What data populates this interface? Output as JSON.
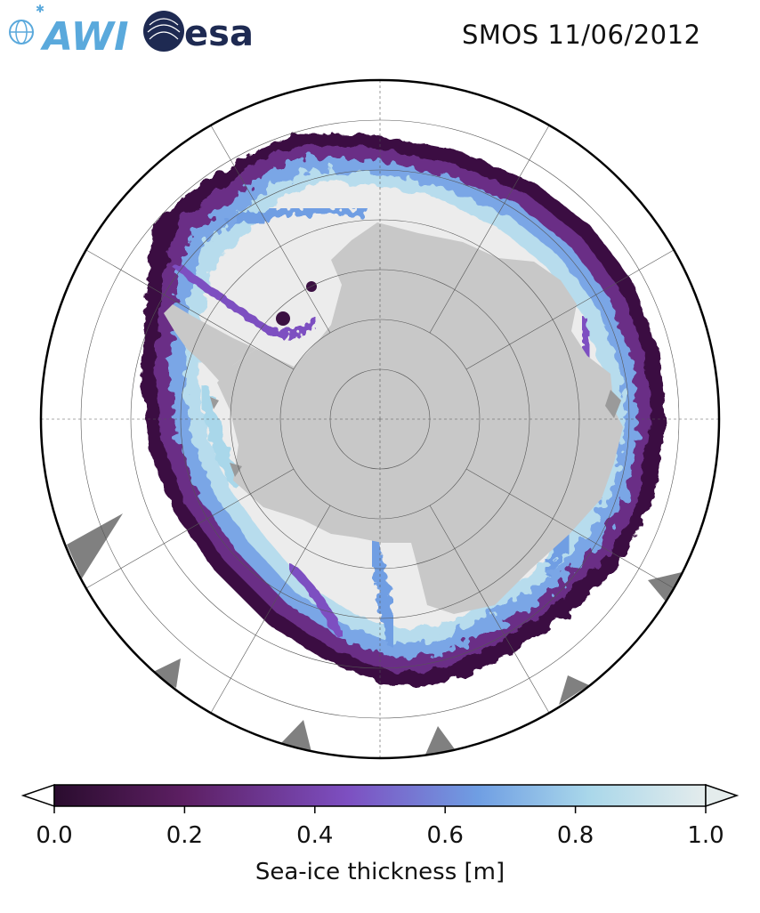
{
  "header": {
    "title": "SMOS 11/06/2012",
    "logos": [
      {
        "name": "AWI",
        "text": "AWI",
        "color": "#5aa9dc"
      },
      {
        "name": "esa",
        "text": "esa",
        "color": "#1e2a52"
      }
    ]
  },
  "map": {
    "projection": "south-polar-stereographic",
    "land_color": "#c8c8c8",
    "ocean_color": "#ffffff",
    "thick_ice_color": "#ececec",
    "missing_data_color": "#808080",
    "parallels_graticule": true,
    "meridians_graticule": true
  },
  "colorbar": {
    "label": "Sea-ice thickness [m]",
    "min": 0.0,
    "max": 1.0,
    "extend": "both",
    "ticks": [
      "0.0",
      "0.2",
      "0.4",
      "0.6",
      "0.8",
      "1.0"
    ],
    "colormap_stops": [
      "#2a0c2e",
      "#5d1f63",
      "#7d4fc1",
      "#6f9ee3",
      "#a9d7ea",
      "#e4ecec"
    ]
  }
}
